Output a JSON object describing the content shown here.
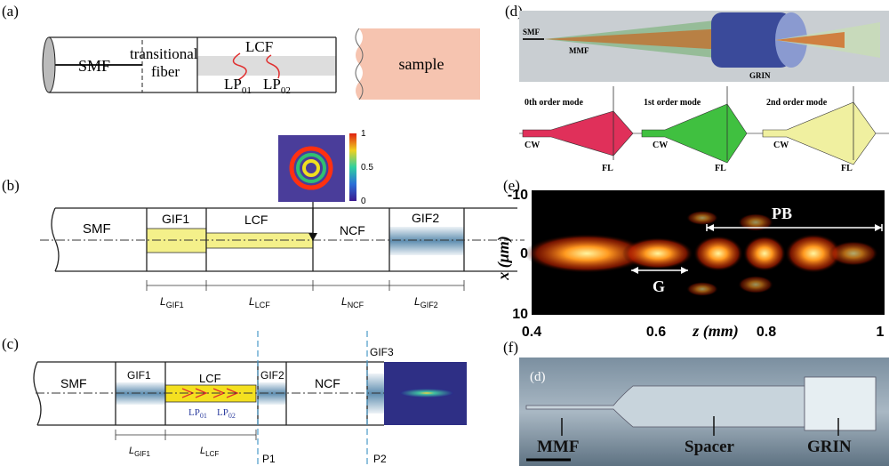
{
  "panel_a": {
    "label": "(a)",
    "smf": "SMF",
    "transitional": "transitional",
    "fiber": "fiber",
    "lcf": "LCF",
    "lp01": {
      "main": "LP",
      "sub": "01"
    },
    "lp02": {
      "main": "LP",
      "sub": "02"
    },
    "sample": "sample"
  },
  "panel_b": {
    "label": "(b)",
    "colorbar_ticks": [
      1,
      0.5,
      0
    ],
    "smf": "SMF",
    "gif1": "GIF1",
    "lcf": "LCF",
    "ncf": "NCF",
    "gif2": "GIF2",
    "lengths": [
      {
        "main": "L",
        "sub": "GIF1"
      },
      {
        "main": "L",
        "sub": "LCF"
      },
      {
        "main": "L",
        "sub": "NCF"
      },
      {
        "main": "L",
        "sub": "GIF2"
      }
    ]
  },
  "panel_c": {
    "label": "(c)",
    "smf": "SMF",
    "gif1": "GIF1",
    "lcf": "LCF",
    "lp01": {
      "main": "LP",
      "sub": "01"
    },
    "lp02": {
      "main": "LP",
      "sub": "02"
    },
    "gif2": "GIF2",
    "ncf": "NCF",
    "gif3": "GIF3",
    "lengths": [
      {
        "main": "L",
        "sub": "GIF1"
      },
      {
        "main": "L",
        "sub": "LCF"
      }
    ],
    "planes": [
      "P1",
      "P2"
    ]
  },
  "panel_d": {
    "label": "(d)",
    "smf": "SMF",
    "mmf": "MMF",
    "grin": "GRIN",
    "modes": [
      {
        "title": "0th order mode",
        "cw": "CW",
        "fl": "FL"
      },
      {
        "title": "1st order mode",
        "cw": "CW",
        "fl": "FL"
      },
      {
        "title": "2nd order mode",
        "cw": "CW",
        "fl": "FL"
      }
    ]
  },
  "panel_e": {
    "label": "(e)",
    "y_ticks": [
      -10,
      0,
      10
    ],
    "y_label": "x (μm)",
    "x_ticks": [
      0.4,
      0.6,
      0.8,
      1
    ],
    "x_label": "z (mm)",
    "pb": "PB",
    "g": "G"
  },
  "panel_f": {
    "label": "(f)",
    "inset_label": "(d)",
    "mmf": "MMF",
    "spacer": "Spacer",
    "grin": "GRIN"
  }
}
